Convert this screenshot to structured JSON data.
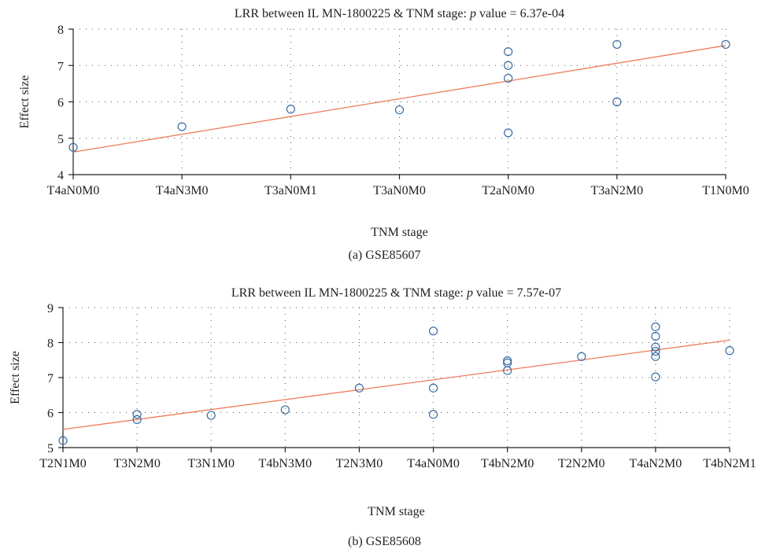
{
  "chart_data": [
    {
      "type": "scatter",
      "title_prefix": "LRR between IL MN-1800225 & TNM stage: ",
      "title_p": "p",
      "title_suffix": " value = 6.37e-04",
      "xlabel": "TNM stage",
      "ylabel": "Effect size",
      "categories": [
        "T4aN0M0",
        "T4aN3M0",
        "T3aN0M1",
        "T3aN0M0",
        "T2aN0M0",
        "T3aN2M0",
        "T1N0M0"
      ],
      "ylim": [
        4,
        8
      ],
      "yticks": [
        4,
        5,
        6,
        7,
        8
      ],
      "points": [
        {
          "x": "T4aN0M0",
          "y": 4.75
        },
        {
          "x": "T4aN3M0",
          "y": 5.32
        },
        {
          "x": "T3aN0M1",
          "y": 5.8
        },
        {
          "x": "T3aN0M0",
          "y": 5.78
        },
        {
          "x": "T2aN0M0",
          "y": 7.38
        },
        {
          "x": "T2aN0M0",
          "y": 7.0
        },
        {
          "x": "T2aN0M0",
          "y": 6.65
        },
        {
          "x": "T2aN0M0",
          "y": 5.15
        },
        {
          "x": "T3aN2M0",
          "y": 7.58
        },
        {
          "x": "T3aN2M0",
          "y": 6.0
        },
        {
          "x": "T1N0M0",
          "y": 7.58
        }
      ],
      "fit_line": {
        "y_at_first": 4.62,
        "y_at_last": 7.55
      },
      "grid": true,
      "colors": {
        "points": "#3a6ea5",
        "fit": "#ef7b5a",
        "grid": "#555555"
      },
      "caption": "(a) GSE85607"
    },
    {
      "type": "scatter",
      "title_prefix": "LRR between IL MN-1800225 & TNM stage: ",
      "title_p": "p",
      "title_suffix": " value = 7.57e-07",
      "xlabel": "TNM stage",
      "ylabel": "Effect size",
      "categories": [
        "T2N1M0",
        "T3N2M0",
        "T3N1M0",
        "T4bN3M0",
        "T2N3M0",
        "T4aN0M0",
        "T4bN2M0",
        "T2N2M0",
        "T4aN2M0",
        "T4bN2M1"
      ],
      "ylim": [
        5,
        9
      ],
      "yticks": [
        5,
        6,
        7,
        8,
        9
      ],
      "points": [
        {
          "x": "T2N1M0",
          "y": 5.2
        },
        {
          "x": "T3N2M0",
          "y": 5.95
        },
        {
          "x": "T3N2M0",
          "y": 5.8
        },
        {
          "x": "T3N1M0",
          "y": 5.92
        },
        {
          "x": "T4bN3M0",
          "y": 6.08
        },
        {
          "x": "T2N3M0",
          "y": 6.7
        },
        {
          "x": "T4aN0M0",
          "y": 8.33
        },
        {
          "x": "T4aN0M0",
          "y": 6.7
        },
        {
          "x": "T4aN0M0",
          "y": 5.95
        },
        {
          "x": "T4bN2M0",
          "y": 7.2
        },
        {
          "x": "T4bN2M0",
          "y": 7.48
        },
        {
          "x": "T4bN2M0",
          "y": 7.42
        },
        {
          "x": "T2N2M0",
          "y": 7.6
        },
        {
          "x": "T4aN2M0",
          "y": 8.45
        },
        {
          "x": "T4aN2M0",
          "y": 8.18
        },
        {
          "x": "T4aN2M0",
          "y": 7.87
        },
        {
          "x": "T4aN2M0",
          "y": 7.75
        },
        {
          "x": "T4aN2M0",
          "y": 7.6
        },
        {
          "x": "T4aN2M0",
          "y": 7.02
        },
        {
          "x": "T4bN2M1",
          "y": 7.77
        }
      ],
      "fit_line": {
        "y_at_first": 5.52,
        "y_at_last": 8.07
      },
      "grid": true,
      "colors": {
        "points": "#3a6ea5",
        "fit": "#ef7b5a",
        "grid": "#555555"
      },
      "caption": "(b) GSE85608"
    }
  ]
}
